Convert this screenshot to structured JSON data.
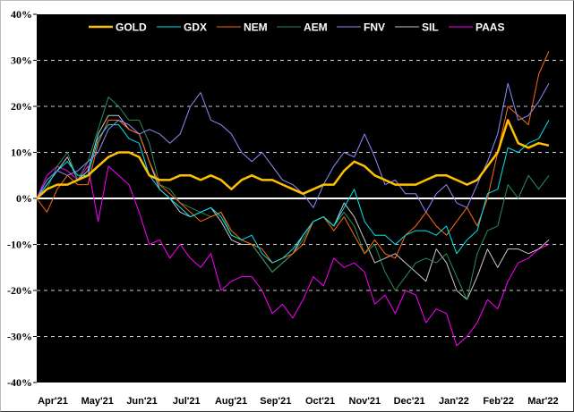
{
  "chart_data": {
    "type": "line",
    "title": "",
    "xlabel": "",
    "ylabel": "",
    "x_unit": "weeks since Apr'21",
    "x": [
      0,
      1,
      2,
      3,
      4,
      5,
      6,
      7,
      8,
      9,
      10,
      11,
      12,
      13,
      14,
      15,
      16,
      17,
      18,
      19,
      20,
      21,
      22,
      23,
      24,
      25,
      26,
      27,
      28,
      29,
      30,
      31,
      32,
      33,
      34,
      35,
      36,
      37,
      38,
      39,
      40,
      41,
      42,
      43,
      44,
      45,
      46,
      47,
      48,
      49,
      50
    ],
    "xlim": [
      0,
      51.6
    ],
    "x_ticks": [
      {
        "label": "Apr'21",
        "x": 0
      },
      {
        "label": "May'21",
        "x": 4.35
      },
      {
        "label": "Jun'21",
        "x": 8.7
      },
      {
        "label": "Jul'21",
        "x": 13.05
      },
      {
        "label": "Aug'21",
        "x": 17.4
      },
      {
        "label": "Sep'21",
        "x": 21.75
      },
      {
        "label": "Oct'21",
        "x": 26.1
      },
      {
        "label": "Nov'21",
        "x": 30.45
      },
      {
        "label": "Dec'21",
        "x": 34.8
      },
      {
        "label": "Jan'22",
        "x": 39.15
      },
      {
        "label": "Feb'22",
        "x": 43.5
      },
      {
        "label": "Mar'22",
        "x": 47.85
      }
    ],
    "ylim": [
      -40,
      40
    ],
    "y_ticks": [
      {
        "label": "40%",
        "value": 40
      },
      {
        "label": "30%",
        "value": 30
      },
      {
        "label": "20%",
        "value": 20
      },
      {
        "label": "10%",
        "value": 10
      },
      {
        "label": "0%",
        "value": 0
      },
      {
        "label": "-10%",
        "value": -10
      },
      {
        "label": "-20%",
        "value": -20
      },
      {
        "label": "-30%",
        "value": -30
      },
      {
        "label": "-40%",
        "value": -40
      }
    ],
    "grid": "horizontal dashed",
    "legend_position": "top",
    "background": "#000000",
    "series": [
      {
        "name": "GOLD",
        "color": "#FFC000",
        "values": [
          0,
          2,
          3,
          3,
          4,
          5,
          7,
          9,
          10,
          10,
          9,
          5,
          4,
          4,
          5,
          5,
          4,
          5,
          4,
          2,
          4,
          5,
          4,
          4,
          3,
          2,
          1,
          2,
          3,
          3,
          6,
          8,
          7,
          5,
          4,
          3,
          3,
          3,
          4,
          5,
          5,
          4,
          3,
          4,
          7,
          10,
          17,
          12,
          11,
          12,
          11.5
        ]
      },
      {
        "name": "GDX",
        "color": "#00E5EE",
        "values": [
          0,
          3,
          6,
          8,
          5,
          5,
          13,
          16,
          16,
          13,
          12,
          5,
          2,
          0,
          -2,
          -4,
          -3,
          -2,
          -4,
          -8,
          -9,
          -8,
          -12,
          -14,
          -13,
          -11,
          -8,
          -5,
          -4,
          -6,
          -2,
          2,
          -5,
          -8,
          -8,
          -10,
          -8,
          -7,
          -7,
          -8,
          -6,
          -12,
          -9,
          -7,
          1,
          2,
          11,
          10,
          12,
          13,
          17
        ]
      },
      {
        "name": "NEM",
        "color": "#FF6A10",
        "values": [
          0,
          -3,
          2,
          5,
          3,
          3,
          12,
          17,
          17,
          15,
          14,
          8,
          3,
          1,
          -1,
          -3,
          -5,
          -4,
          -3,
          -7,
          -9,
          -10,
          -11,
          -14,
          -13,
          -12,
          -10,
          -5,
          -4,
          -7,
          -4,
          -8,
          -12,
          -9,
          -12,
          -13,
          -8,
          -6,
          -3,
          -6,
          -8,
          -5,
          -2,
          -6,
          0,
          10,
          20,
          18,
          16,
          27,
          32
        ]
      },
      {
        "name": "AEM",
        "color": "#2E8B57",
        "values": [
          0,
          2,
          7,
          10,
          4,
          8,
          15,
          22,
          20,
          17,
          17,
          12,
          3,
          2,
          -1,
          -2,
          -3,
          -4,
          -3,
          -8,
          -9,
          -10,
          -13,
          -16,
          -14,
          -12,
          -9,
          -5,
          -4,
          -6,
          -3,
          -6,
          -12,
          -10,
          -16,
          -20,
          -17,
          -14,
          -13,
          -14,
          -12,
          -17,
          -22,
          -12,
          -7,
          -6,
          3,
          0,
          5,
          2,
          5
        ]
      },
      {
        "name": "FNV",
        "color": "#8C8CFF",
        "values": [
          0,
          4,
          6,
          5,
          6,
          8,
          10,
          15,
          17,
          16,
          14,
          15,
          14,
          12,
          14,
          20,
          23,
          17,
          16,
          14,
          10,
          8,
          10,
          7,
          4,
          3,
          1,
          -2,
          3,
          7,
          10,
          9,
          14,
          9,
          3,
          4,
          1,
          1,
          -3,
          1,
          3,
          -1,
          -2,
          3,
          8,
          14,
          25,
          17,
          18,
          21,
          25
        ]
      },
      {
        "name": "SIL",
        "color": "#C8C8C8",
        "values": [
          0,
          3,
          6,
          9,
          4,
          6,
          14,
          18,
          18,
          15,
          14,
          8,
          2,
          0,
          -3,
          -4,
          -3,
          -2,
          -5,
          -9,
          -10,
          -10,
          -13,
          -16,
          -14,
          -12,
          -8,
          -5,
          -4,
          -6,
          -1,
          -4,
          -9,
          -14,
          -13,
          -12,
          -14,
          -16,
          -18,
          -11,
          -14,
          -20,
          -22,
          -17,
          -11,
          -15,
          -11,
          -11,
          -12,
          -11,
          -9
        ]
      },
      {
        "name": "PAAS",
        "color": "#FF00FF",
        "values": [
          0,
          5,
          7,
          6,
          4,
          7,
          -5,
          7,
          5,
          3,
          -3,
          -10,
          -9,
          -13,
          -10,
          -13,
          -15,
          -12,
          -20,
          -18,
          -17,
          -17,
          -20,
          -25,
          -23,
          -26,
          -22,
          -17,
          -19,
          -13,
          -15,
          -14,
          -16,
          -23,
          -21,
          -25,
          -20,
          -21,
          -27,
          -24,
          -25,
          -32,
          -30,
          -27,
          -22,
          -24,
          -18,
          -14,
          -13,
          -11,
          -10
        ]
      }
    ]
  }
}
